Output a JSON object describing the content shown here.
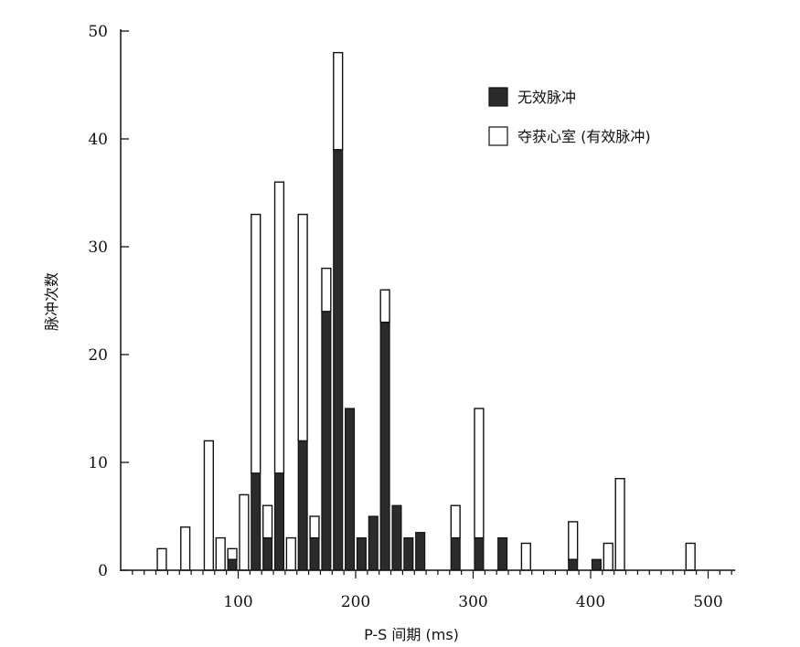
{
  "chart_data": {
    "type": "bar",
    "stacked": true,
    "xlabel": "P-S 间期 (ms)",
    "ylabel": "脉冲次数",
    "xlim": [
      0,
      520
    ],
    "ylim": [
      0,
      50
    ],
    "x_ticks": [
      100,
      200,
      300,
      400,
      500
    ],
    "y_ticks": [
      0,
      10,
      20,
      30,
      40,
      50
    ],
    "bin_width": 10,
    "legend_position": "top-right",
    "grid": false,
    "colors": {
      "ineffective": "#2b2b2b",
      "capture": "#ffffff",
      "outline": "#111111"
    },
    "x": [
      35,
      55,
      75,
      85,
      95,
      105,
      115,
      125,
      135,
      145,
      155,
      165,
      175,
      185,
      195,
      205,
      215,
      225,
      235,
      245,
      255,
      285,
      305,
      325,
      345,
      385,
      405,
      415,
      425,
      485
    ],
    "series": [
      {
        "name": "无效脉冲",
        "values": [
          0,
          0,
          0,
          0,
          1,
          0,
          9,
          3,
          9,
          0,
          12,
          3,
          24,
          39,
          15,
          3,
          5,
          23,
          6,
          3,
          3.5,
          3,
          3,
          3,
          0,
          1,
          1,
          0,
          0,
          0
        ]
      },
      {
        "name": "夺获心室 (有效脉冲)",
        "values": [
          2,
          4,
          12,
          3,
          1,
          7,
          24,
          3,
          27,
          3,
          21,
          2,
          4,
          9,
          0,
          0,
          0,
          3,
          0,
          0,
          0,
          3,
          12,
          0,
          2.5,
          3.5,
          0,
          2.5,
          8.5,
          2.5
        ]
      }
    ]
  }
}
